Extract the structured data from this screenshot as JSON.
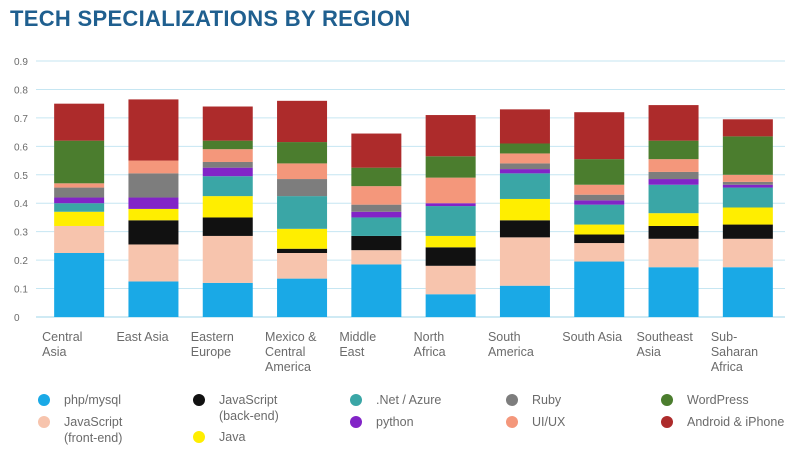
{
  "chart_data": {
    "type": "bar",
    "stacked": true,
    "title": "TECH SPECIALIZATIONS BY REGION",
    "xlabel": "",
    "ylabel": "",
    "ylim": [
      0,
      0.9
    ],
    "yticks": [
      "0",
      "0.1",
      "0.2",
      "0.3",
      "0.4",
      "0.5",
      "0.6",
      "0.7",
      "0.8",
      "0.9"
    ],
    "grid": true,
    "legend_position": "bottom",
    "categories": [
      "Central\nAsia",
      "East Asia",
      "Eastern\nEurope",
      "Mexico &\nCentral\nAmerica",
      "Middle\nEast",
      "North\nAfrica",
      "South\nAmerica",
      "South Asia",
      "Southeast\nAsia",
      "Sub-\nSaharan\nAfrica"
    ],
    "series": [
      {
        "name": "php/mysql",
        "color": "#1aa9e6",
        "values": [
          0.225,
          0.125,
          0.12,
          0.135,
          0.185,
          0.08,
          0.11,
          0.195,
          0.175,
          0.175
        ]
      },
      {
        "name": "JavaScript\n(front-end)",
        "color": "#f7c4ad",
        "values": [
          0.095,
          0.13,
          0.165,
          0.09,
          0.05,
          0.1,
          0.17,
          0.065,
          0.1,
          0.1
        ]
      },
      {
        "name": "JavaScript\n(back-end)",
        "color": "#111111",
        "values": [
          0,
          0.085,
          0.065,
          0.015,
          0.05,
          0.065,
          0.06,
          0.03,
          0.045,
          0.05
        ]
      },
      {
        "name": "Java",
        "color": "#ffee00",
        "values": [
          0.05,
          0.04,
          0.075,
          0.07,
          0,
          0.04,
          0.075,
          0.035,
          0.045,
          0.06
        ]
      },
      {
        "name": ".Net / Azure",
        "color": "#3aa6a6",
        "values": [
          0.03,
          0,
          0.07,
          0.115,
          0.065,
          0.105,
          0.09,
          0.07,
          0.1,
          0.07
        ]
      },
      {
        "name": "python",
        "color": "#8224c7",
        "values": [
          0.02,
          0.04,
          0.03,
          0,
          0.02,
          0.01,
          0.015,
          0.015,
          0.02,
          0.01
        ]
      },
      {
        "name": "Ruby",
        "color": "#7d7d7d",
        "values": [
          0.035,
          0.085,
          0.02,
          0.06,
          0.025,
          0,
          0.02,
          0.02,
          0.025,
          0.01
        ]
      },
      {
        "name": "UI/UX",
        "color": "#f4977b",
        "values": [
          0.015,
          0.045,
          0.045,
          0.055,
          0.065,
          0.09,
          0.035,
          0.035,
          0.045,
          0.025
        ]
      },
      {
        "name": "WordPress",
        "color": "#4b7d2e",
        "values": [
          0.15,
          0,
          0.03,
          0.075,
          0.065,
          0.075,
          0.035,
          0.09,
          0.065,
          0.135
        ]
      },
      {
        "name": "Android & iPhone",
        "color": "#ad2b2b",
        "values": [
          0.13,
          0.215,
          0.12,
          0.145,
          0.12,
          0.145,
          0.12,
          0.165,
          0.125,
          0.06
        ]
      }
    ]
  },
  "legend": [
    {
      "label": "php/mysql",
      "color": "#1aa9e6"
    },
    {
      "label": "JavaScript\n(back-end)",
      "color": "#111111"
    },
    {
      "label": ".Net / Azure",
      "color": "#3aa6a6"
    },
    {
      "label": "Ruby",
      "color": "#7d7d7d"
    },
    {
      "label": "WordPress",
      "color": "#4b7d2e"
    },
    {
      "label": "JavaScript\n(front-end)",
      "color": "#f7c4ad"
    },
    {
      "label": "Java",
      "color": "#ffee00"
    },
    {
      "label": "python",
      "color": "#8224c7"
    },
    {
      "label": "UI/UX",
      "color": "#f4977b"
    },
    {
      "label": "Android & iPhone",
      "color": "#ad2b2b"
    }
  ]
}
